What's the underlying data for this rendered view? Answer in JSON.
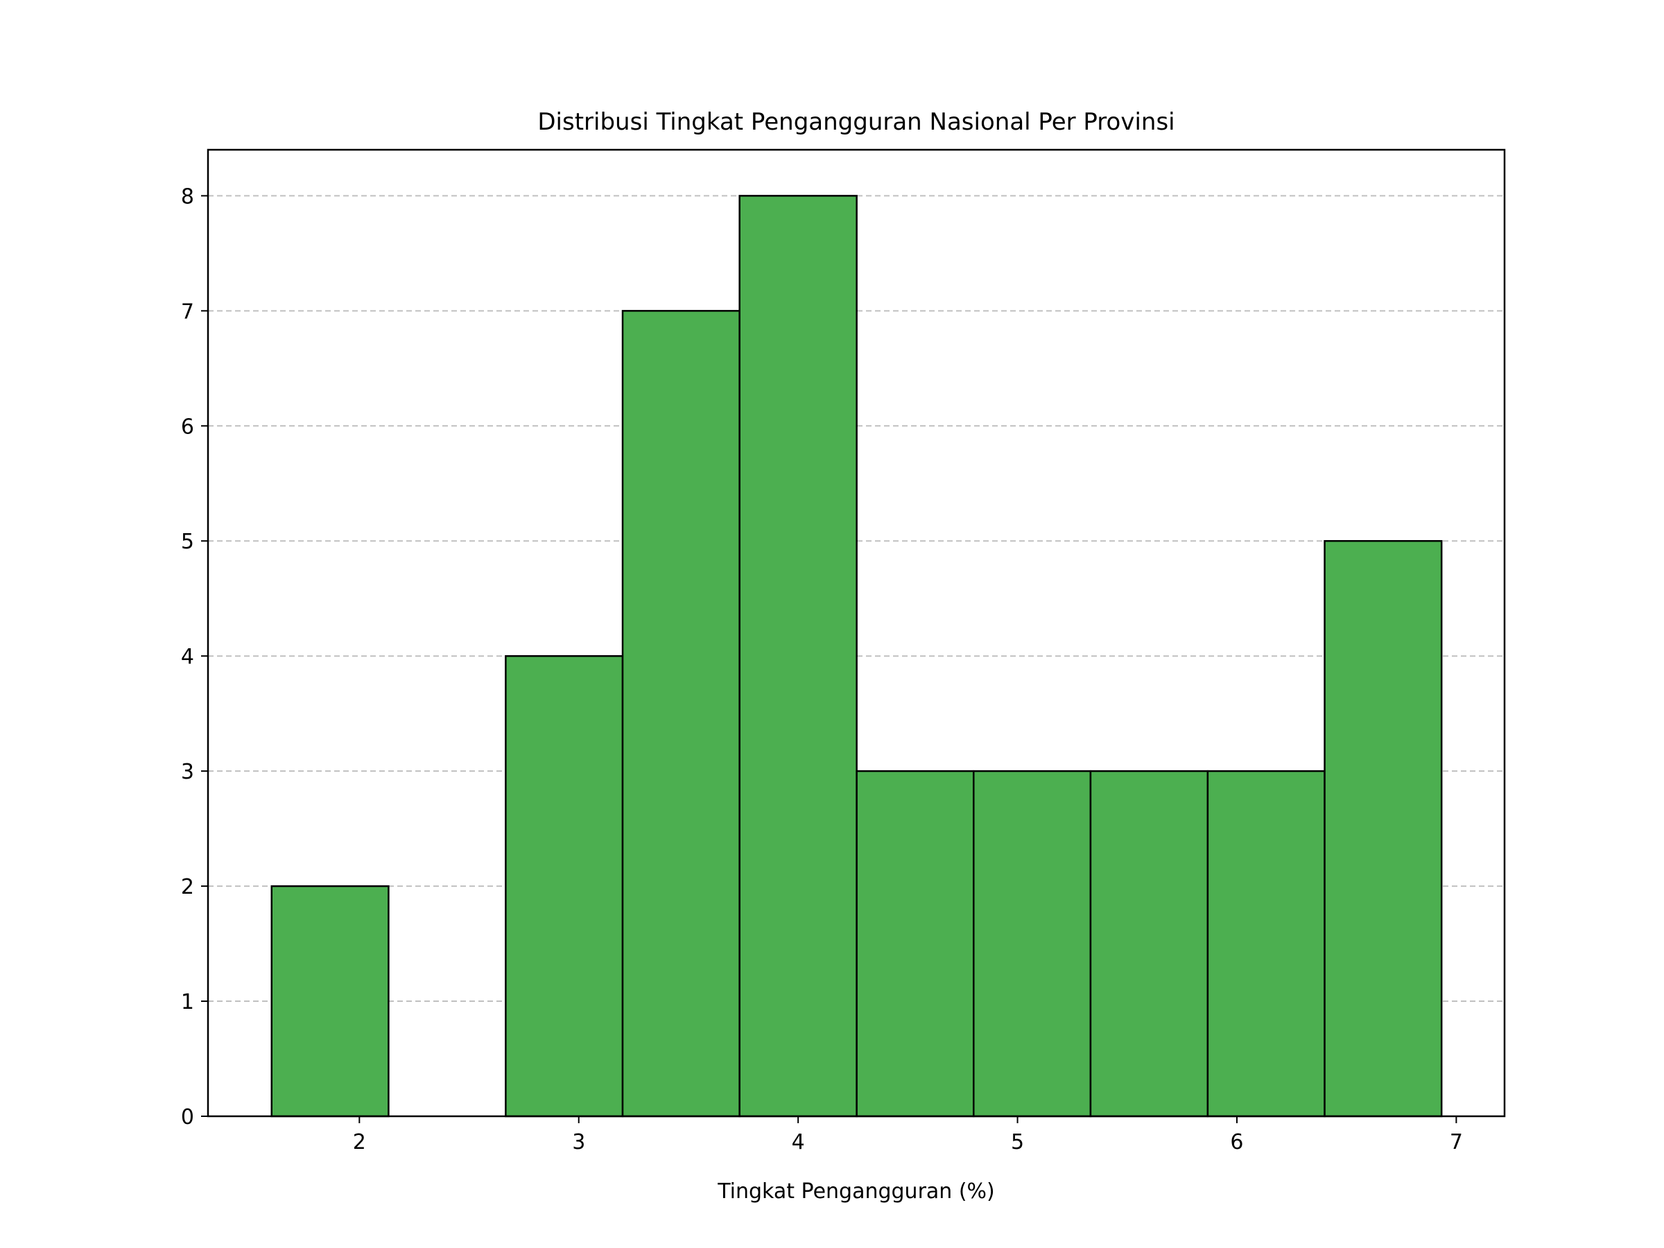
{
  "chart_data": {
    "type": "histogram",
    "title": "Distribusi Tingkat Pengangguran Nasional Per Provinsi",
    "xlabel": "Tingkat Pengangguran (%)",
    "ylabel": "",
    "bin_edges": [
      1.6,
      2.133,
      2.667,
      3.2,
      3.733,
      4.267,
      4.8,
      5.333,
      5.867,
      6.4,
      6.933
    ],
    "counts": [
      2,
      0,
      4,
      7,
      8,
      3,
      3,
      3,
      3,
      5
    ],
    "xlim": [
      1.31,
      7.22
    ],
    "ylim": [
      0,
      8.4
    ],
    "xticks": [
      2,
      3,
      4,
      5,
      6,
      7
    ],
    "yticks": [
      0,
      1,
      2,
      3,
      4,
      5,
      6,
      7,
      8
    ],
    "grid": "y-dashed",
    "bar_color": "#4caf50",
    "edge_color": "#000000",
    "grid_color": "#c0c0c0"
  }
}
